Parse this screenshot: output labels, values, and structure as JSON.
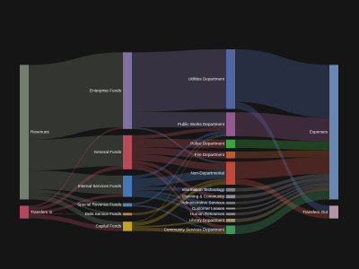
{
  "chart_data": {
    "type": "sankey",
    "nodes": [
      {
        "name": "Revenues",
        "color": "#7e8a76"
      },
      {
        "name": "Transfers In",
        "color": "#c24e66"
      },
      {
        "name": "Enterprise Funds",
        "color": "#8b7cb3"
      },
      {
        "name": "General Funds",
        "color": "#c9525f"
      },
      {
        "name": "Internal Services Funds",
        "color": "#4a82c4"
      },
      {
        "name": "Special Revenue Funds",
        "color": "#5a8fc8"
      },
      {
        "name": "Debt Service Funds",
        "color": "#c6913f"
      },
      {
        "name": "Capital Funds",
        "color": "#d6b421"
      },
      {
        "name": "Utilities Department",
        "color": "#5a6fb2"
      },
      {
        "name": "Public Works Department",
        "color": "#a2609f"
      },
      {
        "name": "Police Department",
        "color": "#3fb344"
      },
      {
        "name": "Fire Department",
        "color": "#d4602f"
      },
      {
        "name": "Non-Departmental",
        "color": "#d34f3f"
      },
      {
        "name": "Information Technology",
        "color": "#8f8f8f"
      },
      {
        "name": "Planning & Community",
        "color": "#9a9aa8"
      },
      {
        "name": "Administrative Services",
        "color": "#7f7f8c"
      },
      {
        "name": "Customer Leases",
        "color": "#a8a8a8"
      },
      {
        "name": "Human Resources",
        "color": "#8c8c96"
      },
      {
        "name": "Library Department",
        "color": "#b0a070"
      },
      {
        "name": "Community Services Department",
        "color": "#45a463"
      },
      {
        "name": "Expenses",
        "color": "#7392c4"
      },
      {
        "name": "Transfers Out",
        "color": "#c2a3b3"
      }
    ],
    "links": [
      {
        "source": 0,
        "target": 2,
        "value": 88
      },
      {
        "source": 0,
        "target": 3,
        "value": 36
      },
      {
        "source": 0,
        "target": 4,
        "value": 22
      },
      {
        "source": 0,
        "target": 5,
        "value": 4
      },
      {
        "source": 0,
        "target": 6,
        "value": 2
      },
      {
        "source": 0,
        "target": 7,
        "value": 6
      },
      {
        "source": 1,
        "target": 2,
        "value": 2
      },
      {
        "source": 1,
        "target": 3,
        "value": 4
      },
      {
        "source": 1,
        "target": 4,
        "value": 3
      },
      {
        "source": 1,
        "target": 6,
        "value": 1
      },
      {
        "source": 1,
        "target": 7,
        "value": 5
      },
      {
        "source": 2,
        "target": 8,
        "value": 70
      },
      {
        "source": 2,
        "target": 9,
        "value": 18
      },
      {
        "source": 2,
        "target": 12,
        "value": 2
      },
      {
        "source": 3,
        "target": 9,
        "value": 4
      },
      {
        "source": 3,
        "target": 10,
        "value": 10
      },
      {
        "source": 3,
        "target": 11,
        "value": 8
      },
      {
        "source": 3,
        "target": 12,
        "value": 8
      },
      {
        "source": 3,
        "target": 14,
        "value": 4
      },
      {
        "source": 3,
        "target": 18,
        "value": 2
      },
      {
        "source": 3,
        "target": 19,
        "value": 4
      },
      {
        "source": 4,
        "target": 9,
        "value": 3
      },
      {
        "source": 4,
        "target": 12,
        "value": 10
      },
      {
        "source": 4,
        "target": 13,
        "value": 4
      },
      {
        "source": 4,
        "target": 15,
        "value": 3
      },
      {
        "source": 4,
        "target": 16,
        "value": 2
      },
      {
        "source": 4,
        "target": 17,
        "value": 3
      },
      {
        "source": 5,
        "target": 9,
        "value": 2
      },
      {
        "source": 5,
        "target": 19,
        "value": 2
      },
      {
        "source": 6,
        "target": 12,
        "value": 3
      },
      {
        "source": 7,
        "target": 9,
        "value": 1
      },
      {
        "source": 7,
        "target": 12,
        "value": 4
      },
      {
        "source": 7,
        "target": 18,
        "value": 2
      },
      {
        "source": 7,
        "target": 19,
        "value": 4
      },
      {
        "source": 8,
        "target": 20,
        "value": 62
      },
      {
        "source": 8,
        "target": 21,
        "value": 8
      },
      {
        "source": 9,
        "target": 20,
        "value": 28
      },
      {
        "source": 10,
        "target": 20,
        "value": 10
      },
      {
        "source": 11,
        "target": 20,
        "value": 8
      },
      {
        "source": 12,
        "target": 20,
        "value": 20
      },
      {
        "source": 12,
        "target": 21,
        "value": 7
      },
      {
        "source": 13,
        "target": 20,
        "value": 4
      },
      {
        "source": 14,
        "target": 20,
        "value": 4
      },
      {
        "source": 15,
        "target": 20,
        "value": 3
      },
      {
        "source": 16,
        "target": 20,
        "value": 2
      },
      {
        "source": 17,
        "target": 20,
        "value": 3
      },
      {
        "source": 18,
        "target": 20,
        "value": 4
      },
      {
        "source": 19,
        "target": 20,
        "value": 10
      }
    ]
  }
}
